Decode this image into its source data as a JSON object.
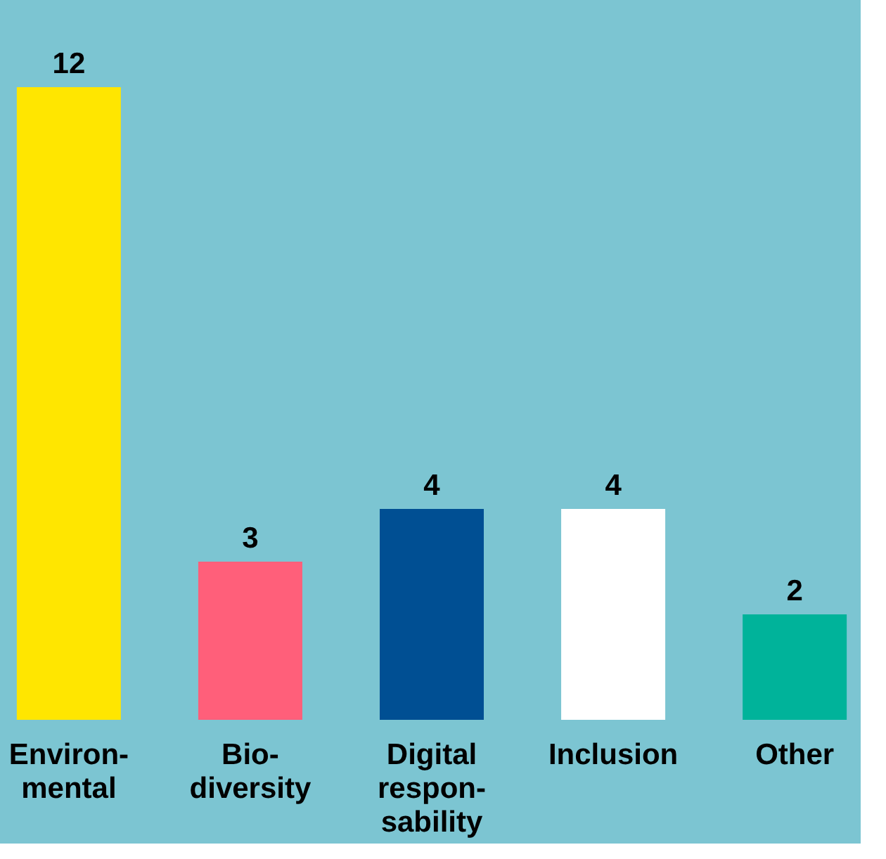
{
  "chart_data": {
    "type": "bar",
    "categories": [
      "Environ-\nmental",
      "Bio-\ndiversity",
      "Digital\nrespon-\nsability",
      "Inclusion",
      "Other"
    ],
    "values": [
      12,
      3,
      4,
      4,
      2
    ],
    "colors": [
      "#ffe600",
      "#ff5f7a",
      "#004f93",
      "#ffffff",
      "#00b39a"
    ],
    "data_labels": true
  }
}
